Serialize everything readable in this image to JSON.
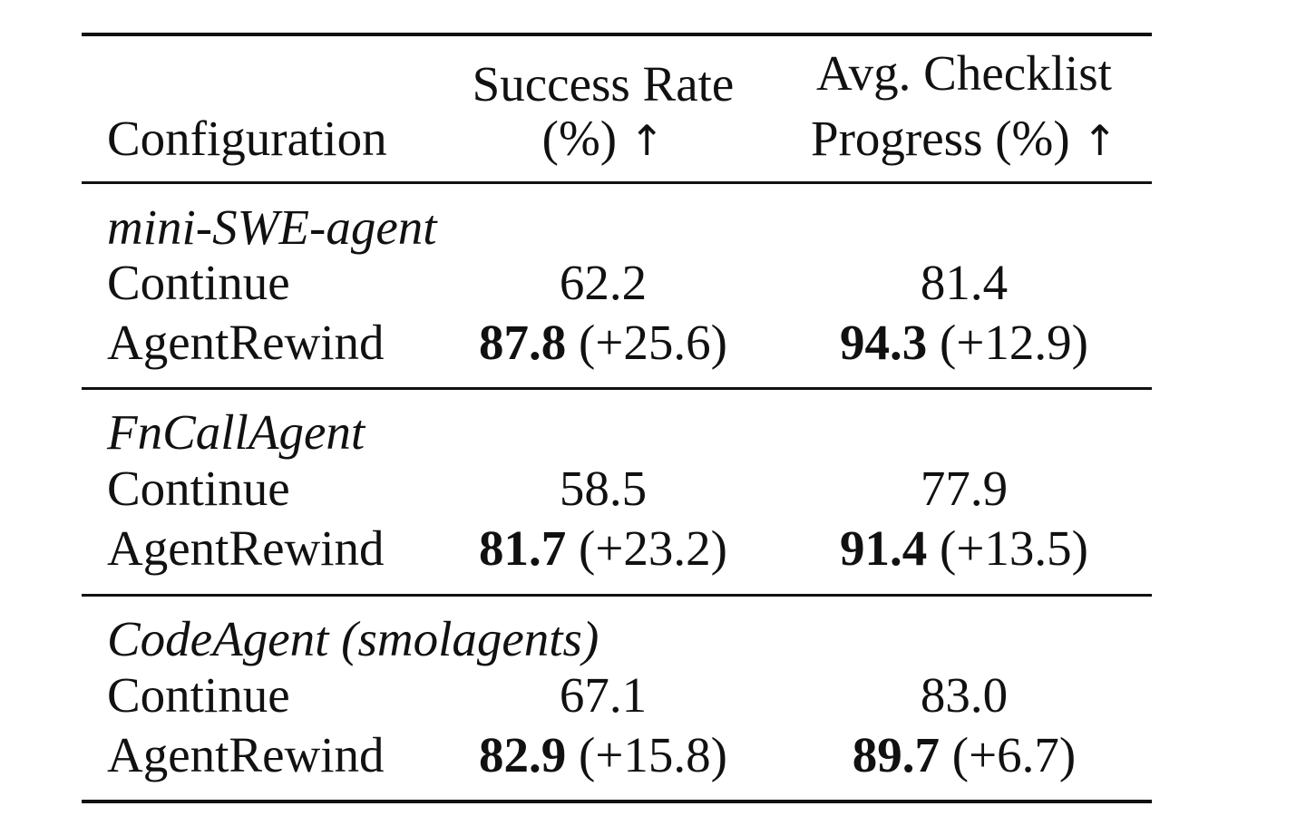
{
  "table": {
    "headers": {
      "configuration": "Configuration",
      "success_rate_line1": "Success Rate",
      "success_rate_line2": "(%)",
      "checklist_line1": "Avg. Checklist",
      "checklist_line2": "Progress (%)",
      "arrow": "↑"
    },
    "groups": [
      {
        "name": "mini-SWE-agent",
        "rows": [
          {
            "config": "Continue",
            "success": "62.2",
            "success_delta": "",
            "checklist": "81.4",
            "checklist_delta": ""
          },
          {
            "config": "AgentRewind",
            "success": "87.8",
            "success_delta": "(+25.6)",
            "checklist": "94.3",
            "checklist_delta": "(+12.9)"
          }
        ]
      },
      {
        "name": "FnCallAgent",
        "rows": [
          {
            "config": "Continue",
            "success": "58.5",
            "success_delta": "",
            "checklist": "77.9",
            "checklist_delta": ""
          },
          {
            "config": "AgentRewind",
            "success": "81.7",
            "success_delta": "(+23.2)",
            "checklist": "91.4",
            "checklist_delta": "(+13.5)"
          }
        ]
      },
      {
        "name": "CodeAgent (smolagents)",
        "rows": [
          {
            "config": "Continue",
            "success": "67.1",
            "success_delta": "",
            "checklist": "83.0",
            "checklist_delta": ""
          },
          {
            "config": "AgentRewind",
            "success": "82.9",
            "success_delta": "(+15.8)",
            "checklist": "89.7",
            "checklist_delta": "(+6.7)"
          }
        ]
      }
    ]
  }
}
